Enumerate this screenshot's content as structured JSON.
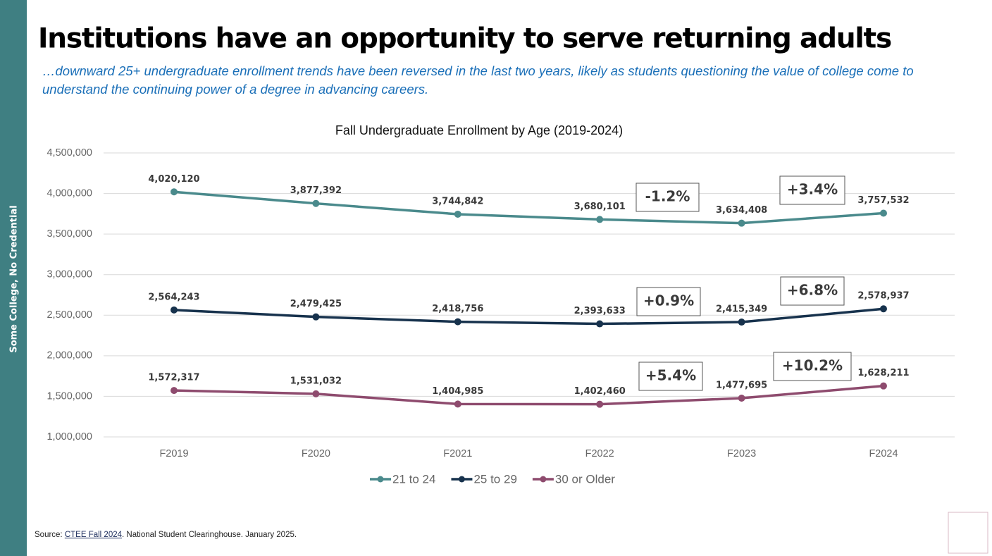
{
  "header": {
    "title": "Institutions have an opportunity to serve returning adults",
    "subtitle": "…downward 25+ undergraduate enrollment trends have been reversed in the last two years, likely as students questioning the value of college come to understand the continuing power of a degree in advancing careers."
  },
  "sidebar": {
    "label": "Some College, No Credential"
  },
  "chart_data": {
    "type": "line",
    "title": "Fall Undergraduate Enrollment by Age  (2019-2024)",
    "categories": [
      "F2019",
      "F2020",
      "F2021",
      "F2022",
      "F2023",
      "F2024"
    ],
    "series": [
      {
        "name": "21 to 24",
        "color": "#4a8a8c",
        "values": [
          4020120,
          3877392,
          3744842,
          3680101,
          3634408,
          3757532
        ],
        "value_labels": [
          "4,020,120",
          "3,877,392",
          "3,744,842",
          "3,680,101",
          "3,634,408",
          "3,757,532"
        ],
        "annotations": [
          "-1.2%",
          "+3.4%"
        ]
      },
      {
        "name": "25 to 29",
        "color": "#17324d",
        "values": [
          2564243,
          2479425,
          2418756,
          2393633,
          2415349,
          2578937
        ],
        "value_labels": [
          "2,564,243",
          "2,479,425",
          "2,418,756",
          "2,393,633",
          "2,415,349",
          "2,578,937"
        ],
        "annotations": [
          "+0.9%",
          "+6.8%"
        ]
      },
      {
        "name": "30 or Older",
        "color": "#8e4b6e",
        "values": [
          1572317,
          1531032,
          1404985,
          1402460,
          1477695,
          1628211
        ],
        "value_labels": [
          "1,572,317",
          "1,531,032",
          "1,404,985",
          "1,402,460",
          "1,477,695",
          "1,628,211"
        ],
        "annotations": [
          "+5.4%",
          "+10.2%"
        ]
      }
    ],
    "ylim": [
      1000000,
      4500000
    ],
    "yticks": [
      {
        "value": 1000000,
        "label": "1,000,000"
      },
      {
        "value": 1500000,
        "label": "1,500,000"
      },
      {
        "value": 2000000,
        "label": "2,000,000"
      },
      {
        "value": 2500000,
        "label": "2,500,000"
      },
      {
        "value": 3000000,
        "label": "3,000,000"
      },
      {
        "value": 3500000,
        "label": "3,500,000"
      },
      {
        "value": 4000000,
        "label": "4,000,000"
      },
      {
        "value": 4500000,
        "label": "4,500,000"
      }
    ],
    "grid": true,
    "legend": "bottom"
  },
  "source": {
    "prefix": "Source: ",
    "link": "CTEE Fall 2024",
    "suffix": ". National Student Clearinghouse. January 2025."
  }
}
